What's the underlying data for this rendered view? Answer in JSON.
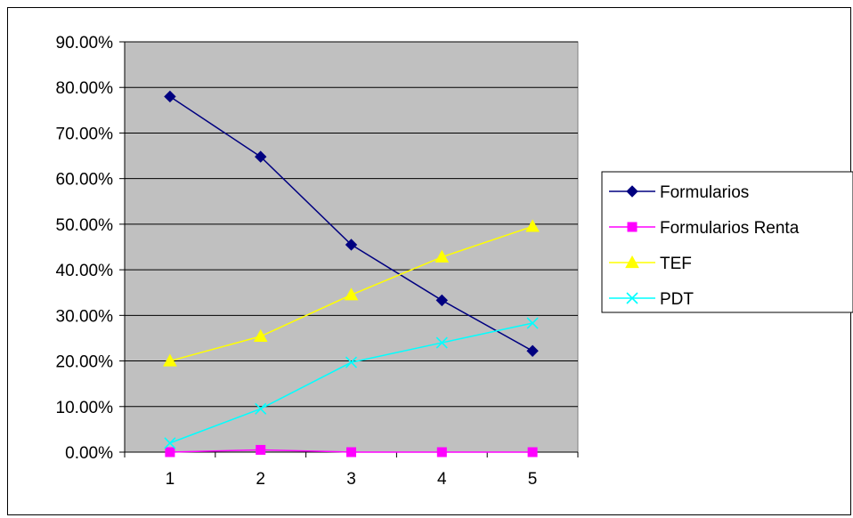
{
  "chart_data": {
    "type": "line",
    "title": "",
    "xlabel": "",
    "ylabel": "",
    "categories": [
      "1",
      "2",
      "3",
      "4",
      "5"
    ],
    "ylim": [
      0,
      0.9
    ],
    "yticks": [
      "0.00%",
      "10.00%",
      "20.00%",
      "30.00%",
      "40.00%",
      "50.00%",
      "60.00%",
      "70.00%",
      "80.00%",
      "90.00%"
    ],
    "grid": true,
    "plot_background": "#c0c0c0",
    "legend_position": "right",
    "series": [
      {
        "name": "Formularios",
        "color": "#000080",
        "marker": "diamond",
        "values": [
          0.78,
          0.648,
          0.455,
          0.333,
          0.222
        ]
      },
      {
        "name": "Formularios Renta",
        "color": "#ff00ff",
        "marker": "square",
        "values": [
          0.0,
          0.005,
          0.0,
          0.0,
          0.0
        ]
      },
      {
        "name": "TEF",
        "color": "#ffff00",
        "marker": "triangle",
        "values": [
          0.2,
          0.254,
          0.345,
          0.428,
          0.495
        ]
      },
      {
        "name": "PDT",
        "color": "#00ffff",
        "marker": "x",
        "values": [
          0.02,
          0.095,
          0.197,
          0.24,
          0.283
        ]
      }
    ]
  }
}
